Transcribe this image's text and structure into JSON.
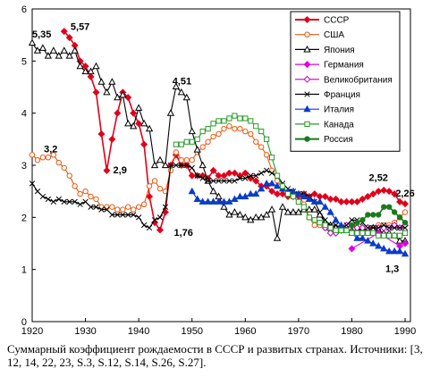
{
  "caption": "Суммарный коэффициент рождаемости в СССР и развитых странах. Источники: [3, 12, 14, 22, 23, S.3, S.12, S.14, S.26, S.27].",
  "chart_data": {
    "type": "line",
    "xlim": [
      1920,
      1991
    ],
    "ylim": [
      0,
      6
    ],
    "xticks": [
      1920,
      1930,
      1940,
      1950,
      1960,
      1970,
      1980,
      1990
    ],
    "yticks": [
      0,
      1,
      2,
      3,
      4,
      5,
      6
    ],
    "grid": false,
    "legend_position": "top-right",
    "series": [
      {
        "name": "СССР",
        "color": "#e0001a",
        "marker": "diamond",
        "fill": true,
        "x": [
          1926,
          1927,
          1928,
          1929,
          1930,
          1931,
          1932,
          1933,
          1934,
          1935,
          1936,
          1937,
          1938,
          1939,
          1940,
          1941,
          1942,
          1943,
          1944,
          1945,
          1946,
          1947,
          1948,
          1949,
          1950,
          1951,
          1952,
          1953,
          1954,
          1955,
          1956,
          1957,
          1958,
          1959,
          1960,
          1961,
          1962,
          1963,
          1964,
          1965,
          1966,
          1967,
          1968,
          1969,
          1970,
          1971,
          1972,
          1973,
          1974,
          1975,
          1976,
          1977,
          1978,
          1979,
          1980,
          1981,
          1982,
          1983,
          1984,
          1985,
          1986,
          1987,
          1988,
          1989,
          1990
        ],
        "y": [
          5.57,
          5.45,
          5.3,
          5.0,
          4.9,
          4.7,
          4.4,
          3.6,
          2.9,
          3.5,
          4.0,
          4.4,
          4.3,
          4.0,
          3.8,
          3.4,
          2.4,
          1.9,
          1.76,
          2.1,
          3.0,
          3.2,
          3.0,
          3.0,
          2.8,
          2.8,
          2.8,
          2.75,
          2.9,
          2.8,
          2.8,
          2.85,
          2.85,
          2.8,
          2.85,
          2.75,
          2.7,
          2.6,
          2.6,
          2.5,
          2.45,
          2.45,
          2.4,
          2.4,
          2.4,
          2.45,
          2.4,
          2.45,
          2.4,
          2.4,
          2.35,
          2.35,
          2.3,
          2.3,
          2.3,
          2.3,
          2.35,
          2.4,
          2.45,
          2.5,
          2.52,
          2.5,
          2.45,
          2.3,
          2.26
        ]
      },
      {
        "name": "США",
        "color": "#e85a10",
        "marker": "circle",
        "fill": false,
        "x": [
          1920,
          1921,
          1922,
          1923,
          1924,
          1925,
          1926,
          1927,
          1928,
          1929,
          1930,
          1931,
          1932,
          1933,
          1934,
          1935,
          1936,
          1937,
          1938,
          1939,
          1940,
          1941,
          1942,
          1943,
          1944,
          1945,
          1946,
          1947,
          1948,
          1949,
          1950,
          1951,
          1952,
          1953,
          1954,
          1955,
          1956,
          1957,
          1958,
          1959,
          1960,
          1961,
          1962,
          1963,
          1964,
          1965,
          1966,
          1967,
          1968,
          1969,
          1970,
          1971,
          1972,
          1973,
          1974,
          1975,
          1976,
          1977,
          1978,
          1979,
          1980,
          1981,
          1982,
          1983,
          1984,
          1985,
          1986,
          1987,
          1988,
          1989,
          1990
        ],
        "y": [
          3.2,
          3.1,
          3.15,
          3.15,
          3.2,
          3.05,
          2.95,
          2.8,
          2.6,
          2.45,
          2.5,
          2.4,
          2.35,
          2.2,
          2.2,
          2.2,
          2.15,
          2.15,
          2.2,
          2.15,
          2.2,
          2.25,
          2.6,
          2.7,
          2.55,
          2.5,
          2.9,
          3.25,
          3.1,
          3.1,
          3.1,
          3.25,
          3.35,
          3.45,
          3.55,
          3.6,
          3.7,
          3.75,
          3.7,
          3.7,
          3.65,
          3.6,
          3.45,
          3.35,
          3.2,
          2.9,
          2.7,
          2.55,
          2.45,
          2.45,
          2.45,
          2.25,
          2.0,
          1.85,
          1.85,
          1.8,
          1.75,
          1.8,
          1.75,
          1.8,
          1.85,
          1.8,
          1.8,
          1.8,
          1.8,
          1.85,
          1.85,
          1.85,
          1.9,
          2.0,
          2.1
        ]
      },
      {
        "name": "Япония",
        "color": "#000000",
        "marker": "triangle",
        "fill": false,
        "x": [
          1920,
          1921,
          1922,
          1923,
          1924,
          1925,
          1926,
          1927,
          1928,
          1929,
          1930,
          1931,
          1932,
          1933,
          1934,
          1935,
          1936,
          1937,
          1938,
          1939,
          1940,
          1941,
          1942,
          1943,
          1944,
          1945,
          1946,
          1947,
          1948,
          1949,
          1950,
          1951,
          1952,
          1953,
          1954,
          1955,
          1956,
          1957,
          1958,
          1959,
          1960,
          1961,
          1962,
          1963,
          1964,
          1965,
          1966,
          1967,
          1968,
          1969,
          1970,
          1971,
          1972,
          1973,
          1974,
          1975,
          1976,
          1977,
          1978,
          1979,
          1980,
          1981,
          1982,
          1983,
          1984,
          1985,
          1986,
          1987,
          1988,
          1989,
          1990
        ],
        "y": [
          5.35,
          5.2,
          5.25,
          5.1,
          5.2,
          5.1,
          5.2,
          5.1,
          5.2,
          4.9,
          4.8,
          4.8,
          4.9,
          4.6,
          4.4,
          4.6,
          4.3,
          4.35,
          3.8,
          3.75,
          4.1,
          3.8,
          3.7,
          3.0,
          3.1,
          3.0,
          4.0,
          4.51,
          4.4,
          4.3,
          3.65,
          3.3,
          3.0,
          2.7,
          2.5,
          2.4,
          2.2,
          2.05,
          2.1,
          2.05,
          2.0,
          1.95,
          2.0,
          2.0,
          2.05,
          2.15,
          1.6,
          2.2,
          2.1,
          2.1,
          2.1,
          2.15,
          2.15,
          2.15,
          2.05,
          1.9,
          1.85,
          1.8,
          1.8,
          1.75,
          1.75,
          1.75,
          1.8,
          1.8,
          1.8,
          1.75,
          1.7,
          1.7,
          1.65,
          1.55,
          1.55
        ]
      },
      {
        "name": "Германия",
        "color": "#e000e0",
        "marker": "diamond",
        "fill": true,
        "x": [
          1980,
          1985,
          1989,
          1990
        ],
        "y": [
          1.4,
          1.7,
          1.45,
          1.5
        ]
      },
      {
        "name": "Великобритания",
        "color": "#c000c0",
        "marker": "diamond",
        "fill": false,
        "x": [
          1975,
          1976,
          1977,
          1978,
          1979,
          1980,
          1981,
          1982,
          1983,
          1984,
          1985,
          1986,
          1987,
          1988,
          1989,
          1990
        ],
        "y": [
          1.8,
          1.7,
          1.7,
          1.75,
          1.85,
          1.9,
          1.8,
          1.8,
          1.8,
          1.75,
          1.8,
          1.8,
          1.8,
          1.85,
          1.8,
          1.85
        ]
      },
      {
        "name": "Франция",
        "color": "#000000",
        "marker": "x",
        "fill": false,
        "x": [
          1920,
          1921,
          1922,
          1923,
          1924,
          1925,
          1926,
          1927,
          1928,
          1929,
          1930,
          1931,
          1932,
          1933,
          1934,
          1935,
          1936,
          1937,
          1938,
          1939,
          1940,
          1941,
          1942,
          1943,
          1944,
          1945,
          1946,
          1947,
          1948,
          1949,
          1950,
          1951,
          1952,
          1953,
          1954,
          1955,
          1956,
          1957,
          1958,
          1959,
          1960,
          1961,
          1962,
          1963,
          1964,
          1965,
          1966,
          1967,
          1968,
          1969,
          1970,
          1971,
          1972,
          1973,
          1974,
          1975,
          1976,
          1977,
          1978,
          1979,
          1980,
          1981,
          1982,
          1983,
          1984,
          1985,
          1986,
          1987,
          1988,
          1989,
          1990
        ],
        "y": [
          2.65,
          2.5,
          2.4,
          2.35,
          2.3,
          2.35,
          2.3,
          2.3,
          2.3,
          2.25,
          2.3,
          2.2,
          2.2,
          2.15,
          2.15,
          2.05,
          2.05,
          2.05,
          2.05,
          2.05,
          2.0,
          1.85,
          1.8,
          1.95,
          2.0,
          2.2,
          3.0,
          3.0,
          3.0,
          3.0,
          2.95,
          2.8,
          2.75,
          2.7,
          2.7,
          2.7,
          2.7,
          2.7,
          2.7,
          2.75,
          2.75,
          2.8,
          2.8,
          2.85,
          2.9,
          2.85,
          2.8,
          2.65,
          2.55,
          2.5,
          2.45,
          2.45,
          2.4,
          2.3,
          2.1,
          1.95,
          1.85,
          1.85,
          1.8,
          1.85,
          1.95,
          1.95,
          1.9,
          1.8,
          1.8,
          1.8,
          1.85,
          1.8,
          1.8,
          1.8,
          1.8
        ]
      },
      {
        "name": "Италия",
        "color": "#0a3cc8",
        "marker": "triangle",
        "fill": true,
        "x": [
          1950,
          1951,
          1952,
          1953,
          1954,
          1955,
          1956,
          1957,
          1958,
          1959,
          1960,
          1961,
          1962,
          1963,
          1964,
          1965,
          1966,
          1967,
          1968,
          1969,
          1970,
          1971,
          1972,
          1973,
          1974,
          1975,
          1976,
          1977,
          1978,
          1979,
          1980,
          1981,
          1982,
          1983,
          1984,
          1985,
          1986,
          1987,
          1988,
          1989,
          1990
        ],
        "y": [
          2.5,
          2.35,
          2.3,
          2.3,
          2.3,
          2.3,
          2.3,
          2.3,
          2.35,
          2.4,
          2.4,
          2.45,
          2.45,
          2.55,
          2.65,
          2.65,
          2.6,
          2.55,
          2.5,
          2.5,
          2.45,
          2.4,
          2.35,
          2.3,
          2.3,
          2.2,
          2.1,
          1.95,
          1.85,
          1.75,
          1.7,
          1.6,
          1.6,
          1.55,
          1.5,
          1.45,
          1.4,
          1.35,
          1.35,
          1.35,
          1.3
        ]
      },
      {
        "name": "Канада",
        "color": "#2a9a2a",
        "marker": "square",
        "fill": false,
        "x": [
          1947,
          1948,
          1949,
          1950,
          1951,
          1952,
          1953,
          1954,
          1955,
          1956,
          1957,
          1958,
          1959,
          1960,
          1961,
          1962,
          1963,
          1964,
          1965,
          1966,
          1967,
          1968,
          1969,
          1970,
          1971,
          1972,
          1973,
          1974,
          1975,
          1976,
          1977,
          1978,
          1979,
          1980,
          1981,
          1982,
          1983,
          1984,
          1985,
          1986,
          1987,
          1988,
          1989,
          1990
        ],
        "y": [
          3.4,
          3.4,
          3.45,
          3.45,
          3.5,
          3.65,
          3.7,
          3.8,
          3.85,
          3.85,
          3.9,
          3.95,
          3.9,
          3.9,
          3.85,
          3.75,
          3.65,
          3.5,
          3.15,
          2.8,
          2.6,
          2.45,
          2.4,
          2.3,
          2.2,
          2.0,
          1.95,
          1.9,
          1.85,
          1.8,
          1.75,
          1.75,
          1.75,
          1.7,
          1.7,
          1.7,
          1.7,
          1.7,
          1.65,
          1.65,
          1.65,
          1.65,
          1.65,
          1.7
        ]
      },
      {
        "name": "Россия",
        "color": "#1a7a1a",
        "marker": "circle",
        "fill": true,
        "x": [
          1980,
          1981,
          1982,
          1983,
          1984,
          1985,
          1986,
          1987,
          1988,
          1989,
          1990
        ],
        "y": [
          1.85,
          1.9,
          1.95,
          2.05,
          2.05,
          2.05,
          2.2,
          2.2,
          2.1,
          2.0,
          1.9
        ]
      }
    ],
    "annotations": [
      {
        "text": "5,35",
        "x": 1920,
        "y": 5.45
      },
      {
        "text": "5,57",
        "x": 1927.2,
        "y": 5.6
      },
      {
        "text": "3,2",
        "x": 1922.2,
        "y": 3.25
      },
      {
        "text": "2,9",
        "x": 1935.2,
        "y": 2.85
      },
      {
        "text": "4,51",
        "x": 1946.3,
        "y": 4.55
      },
      {
        "text": "1,76",
        "x": 1946.6,
        "y": 1.65
      },
      {
        "text": "2,52",
        "x": 1983.2,
        "y": 2.7
      },
      {
        "text": "2,26",
        "x": 1988.2,
        "y": 2.4
      },
      {
        "text": "1,3",
        "x": 1986.3,
        "y": 0.95
      }
    ]
  }
}
